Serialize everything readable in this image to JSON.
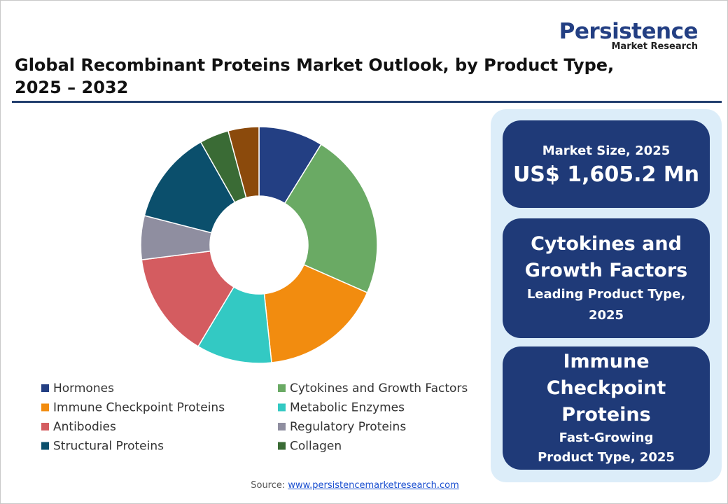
{
  "logo": {
    "name": "Persistence",
    "tagline": "Market Research"
  },
  "chart_data": {
    "type": "donut",
    "title": "Global Recombinant Proteins Market Outlook, by Product Type, 2025 – 2032",
    "categories": [
      "Hormones",
      "Cytokines and Growth Factors",
      "Immune Checkpoint Proteins",
      "Metabolic Enzymes",
      "Antibodies",
      "Regulatory Proteins",
      "Structural Proteins",
      "Collagen",
      null
    ],
    "values": [
      8.8,
      22.8,
      16.7,
      10.3,
      14.4,
      6.0,
      12.8,
      4.0,
      4.2
    ],
    "colors": [
      "#233f83",
      "#6aaa64",
      "#f28c0f",
      "#33c9c3",
      "#d45c60",
      "#8f8ea0",
      "#0b4f6c",
      "#3a6b35",
      "#8b4a0c"
    ],
    "legend_position": "bottom"
  },
  "panel": {
    "cards": [
      {
        "label": "Market Size, 2025",
        "value": "US$ 1,605.2 Mn"
      },
      {
        "title": "Cytokines and Growth Factors",
        "subtitle": "Leading Product Type, 2025"
      },
      {
        "title": "Immune Checkpoint Proteins",
        "subtitle": "Fast-Growing Product Type, 2025"
      }
    ]
  },
  "source": {
    "label": "Source:",
    "link": "www.persistencemarketresearch.com"
  }
}
